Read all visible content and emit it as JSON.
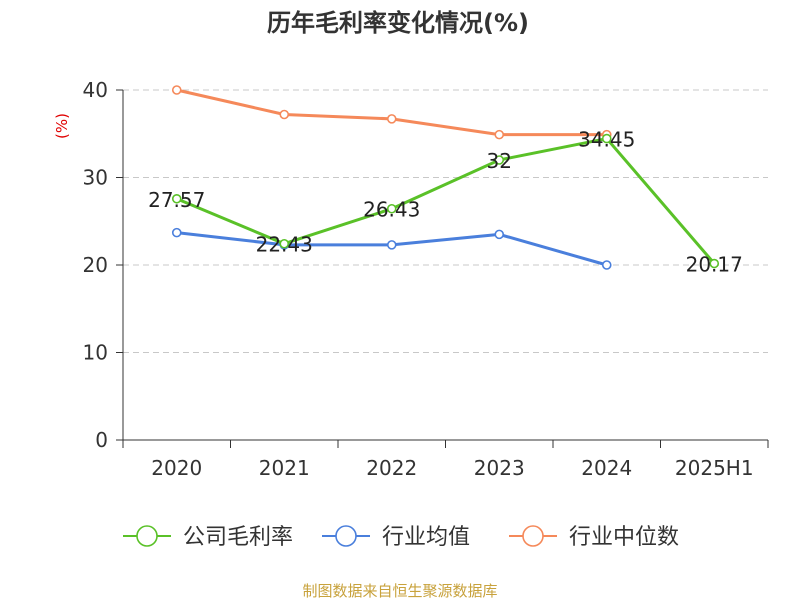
{
  "title": "历年毛利率变化情况(%)",
  "source": "制图数据来自恒生聚源数据库",
  "chart_data": {
    "type": "line",
    "title": "历年毛利率变化情况(%)",
    "ylabel": "(%)",
    "categories": [
      "2020",
      "2021",
      "2022",
      "2023",
      "2024",
      "2025H1"
    ],
    "ylim": [
      0,
      40
    ],
    "yticks": [
      0,
      10,
      20,
      30,
      40
    ],
    "grid": true,
    "legend_position": "bottom",
    "series": [
      {
        "name": "公司毛利率",
        "color": "#5ac128",
        "values": [
          27.57,
          22.43,
          26.43,
          32,
          34.45,
          20.17
        ],
        "labels": [
          "27.57",
          "22.43",
          "26.43",
          "32",
          "34.45",
          "20.17"
        ]
      },
      {
        "name": "行业均值",
        "color": "#4a7fdc",
        "values": [
          23.7,
          22.3,
          22.3,
          23.5,
          20.0,
          null
        ]
      },
      {
        "name": "行业中位数",
        "color": "#f5895a",
        "values": [
          40.0,
          37.2,
          36.7,
          34.9,
          34.9,
          null
        ]
      }
    ]
  }
}
